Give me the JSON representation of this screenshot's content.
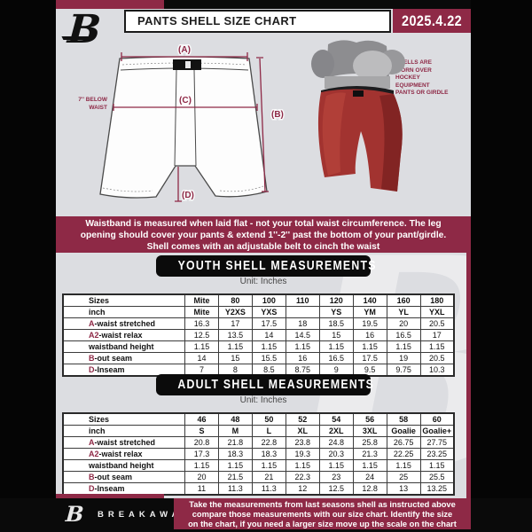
{
  "colors": {
    "accent_maroon": "#8E2946",
    "banner_black": "#0B0B0B",
    "page_bg": "#DCDDE1",
    "shell_red": "#A33431"
  },
  "header": {
    "title": "PANTS SHELL SIZE CHART",
    "date": "2025.4.22",
    "logo_glyph": "B"
  },
  "diagram": {
    "labels": {
      "a": "(A)",
      "b": "(B)",
      "c": "(C)",
      "d": "(D)"
    },
    "below_waist": "7'' BELOW WAIST",
    "shell_note": "SHELLS ARE WORN OVER HOCKEY EQUIPMENT PANTS OR GIRDLE"
  },
  "info_banner": {
    "lines": [
      "Waistband is measured when laid flat - not your total waist circumference. The leg",
      "opening should cover your pants & extend 1''-2'' past the bottom of your pant/girdle.",
      "Shell comes with an adjustable belt to cinch the waist"
    ]
  },
  "youth": {
    "title": "YOUTH SHELL MEASUREMENTS",
    "unit": "Unit: Inches",
    "rows": [
      {
        "prefix": "",
        "label": "Sizes",
        "values": [
          "Mite",
          "80",
          "100",
          "110",
          "120",
          "140",
          "160",
          "180"
        ]
      },
      {
        "prefix": "",
        "label": "inch",
        "values": [
          "Mite",
          "Y2XS",
          "YXS",
          "",
          "YS",
          "YM",
          "YL",
          "YXL"
        ]
      },
      {
        "prefix": "A",
        "label": "-waist stretched",
        "values": [
          "16.3",
          "17",
          "17.5",
          "18",
          "18.5",
          "19.5",
          "20",
          "20.5"
        ]
      },
      {
        "prefix": "A2",
        "label": "-waist relax",
        "values": [
          "12.5",
          "13.5",
          "14",
          "14.5",
          "15",
          "16",
          "16.5",
          "17"
        ]
      },
      {
        "prefix": "",
        "label": "waistband height",
        "values": [
          "1.15",
          "1.15",
          "1.15",
          "1.15",
          "1.15",
          "1.15",
          "1.15",
          "1.15"
        ]
      },
      {
        "prefix": "B",
        "label": "-out seam",
        "values": [
          "14",
          "15",
          "15.5",
          "16",
          "16.5",
          "17.5",
          "19",
          "20.5"
        ]
      },
      {
        "prefix": "D",
        "label": "-Inseam",
        "values": [
          "7",
          "8",
          "8.5",
          "8.75",
          "9",
          "9.5",
          "9.75",
          "10.3"
        ]
      }
    ]
  },
  "adult": {
    "title": "ADULT SHELL MEASUREMENTS",
    "unit": "Unit: Inches",
    "rows": [
      {
        "prefix": "",
        "label": "Sizes",
        "values": [
          "46",
          "48",
          "50",
          "52",
          "54",
          "56",
          "58",
          "60"
        ]
      },
      {
        "prefix": "",
        "label": "inch",
        "values": [
          "S",
          "M",
          "L",
          "XL",
          "2XL",
          "3XL",
          "Goalie",
          "Goalie+"
        ]
      },
      {
        "prefix": "A",
        "label": "-waist stretched",
        "values": [
          "20.8",
          "21.8",
          "22.8",
          "23.8",
          "24.8",
          "25.8",
          "26.75",
          "27.75"
        ]
      },
      {
        "prefix": "A2",
        "label": "-waist relax",
        "values": [
          "17.3",
          "18.3",
          "18.3",
          "19.3",
          "20.3",
          "21.3",
          "22.25",
          "23.25"
        ]
      },
      {
        "prefix": "",
        "label": "waistband height",
        "values": [
          "1.15",
          "1.15",
          "1.15",
          "1.15",
          "1.15",
          "1.15",
          "1.15",
          "1.15"
        ]
      },
      {
        "prefix": "B",
        "label": "-out seam",
        "values": [
          "20",
          "21.5",
          "21",
          "22.3",
          "23",
          "24",
          "25",
          "25.5"
        ]
      },
      {
        "prefix": "D",
        "label": "-Inseam",
        "values": [
          "11",
          "11.3",
          "11.3",
          "12",
          "12.5",
          "12.8",
          "13",
          "13.25"
        ]
      }
    ]
  },
  "footer": {
    "brand": "BREAKAWAY",
    "logo_glyph": "B",
    "note_lines": [
      "Take the measurements from last seasons shell as instructed above",
      "compare those measurements  with our size chart. Identify the size",
      "on the chart, if you need a larger size move up the scale on the chart"
    ]
  }
}
